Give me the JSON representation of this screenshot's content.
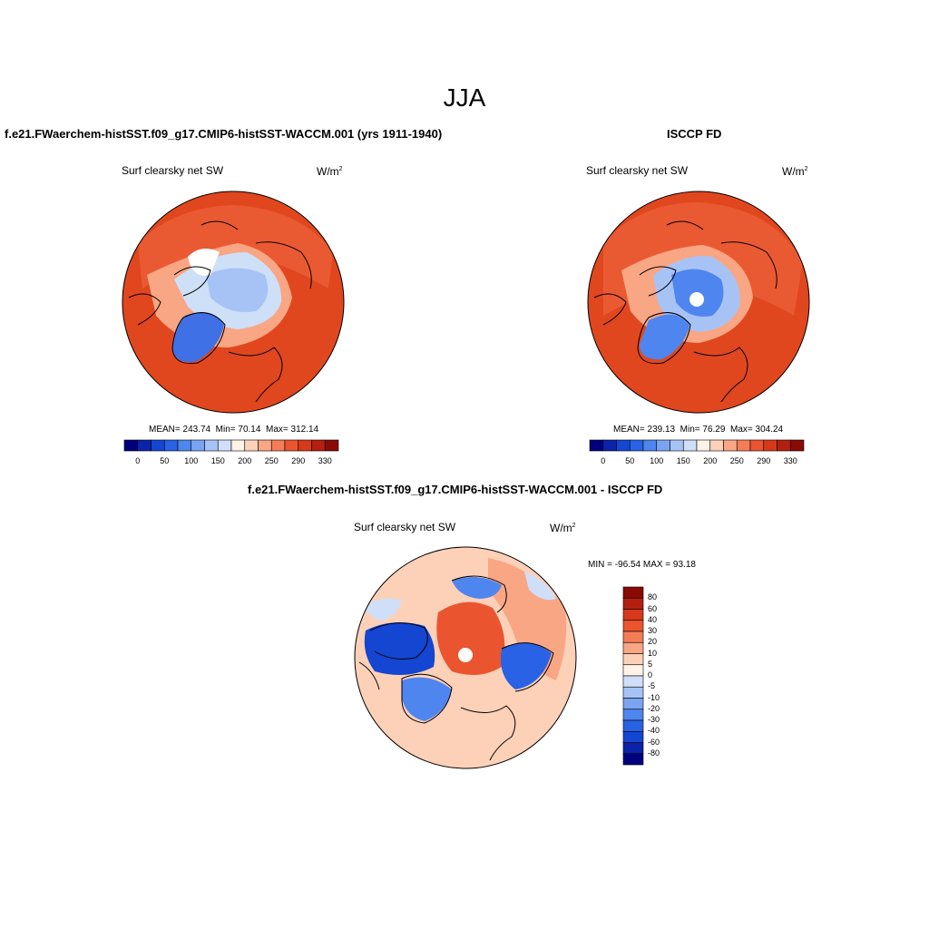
{
  "figure": {
    "title": "JJA"
  },
  "panels": [
    {
      "title": "f.e21.FWaerchem-histSST.f09_g17.CMIP6-histSST-WACCM.001 (yrs 1911-1940)",
      "variable": "Surf clearsky net SW",
      "units_base": "W/m",
      "units_exp": "2",
      "stats": {
        "mean_label": "MEAN=",
        "mean": "243.74",
        "min_label": "Min=",
        "min": "70.14",
        "max_label": "Max=",
        "max": "312.14"
      },
      "colorbar_ticks": [
        "0",
        "50",
        "100",
        "150",
        "200",
        "250",
        "290",
        "330"
      ]
    },
    {
      "title": "ISCCP FD",
      "variable": "Surf clearsky net SW",
      "units_base": "W/m",
      "units_exp": "2",
      "stats": {
        "mean_label": "MEAN=",
        "mean": "239.13",
        "min_label": "Min=",
        "min": "76.29",
        "max_label": "Max=",
        "max": "304.24"
      },
      "colorbar_ticks": [
        "0",
        "50",
        "100",
        "150",
        "200",
        "250",
        "290",
        "330"
      ]
    },
    {
      "title": "f.e21.FWaerchem-histSST.f09_g17.CMIP6-histSST-WACCM.001 - ISCCP FD",
      "variable": "Surf clearsky net SW",
      "units_base": "W/m",
      "units_exp": "2",
      "stats_text": "MIN = -96.54 MAX =  93.18",
      "colorbar_ticks": [
        "80",
        "60",
        "40",
        "30",
        "20",
        "10",
        "5",
        "0",
        "-5",
        "-10",
        "-20",
        "-30",
        "-40",
        "-60",
        "-80"
      ]
    }
  ],
  "colors": {
    "abs_scale": [
      "#00007f",
      "#0a23a8",
      "#1446d2",
      "#2a62e6",
      "#4f85ee",
      "#7aa3f2",
      "#a7c3f5",
      "#cfdff8",
      "#fff3e8",
      "#fdd0b8",
      "#f9a684",
      "#f47c56",
      "#ea5530",
      "#d63a1a",
      "#b42010",
      "#8a0a05"
    ],
    "diff_scale": [
      "#8a0a05",
      "#b42010",
      "#d63a1a",
      "#ea5530",
      "#f47c56",
      "#f9a684",
      "#fdd0b8",
      "#fff3e8",
      "#cfdff8",
      "#a7c3f5",
      "#7aa3f2",
      "#4f85ee",
      "#2a62e6",
      "#1446d2",
      "#0a23a8",
      "#00007f"
    ],
    "ocean_warm": "#ea5a32",
    "ocean_hot": "#e0471e",
    "ice_light": "#cde0f8",
    "ice_mid": "#9fc0f3",
    "greenland": "#3f70e6",
    "diff_bg": "#f7b89a",
    "coast": "#000000"
  }
}
